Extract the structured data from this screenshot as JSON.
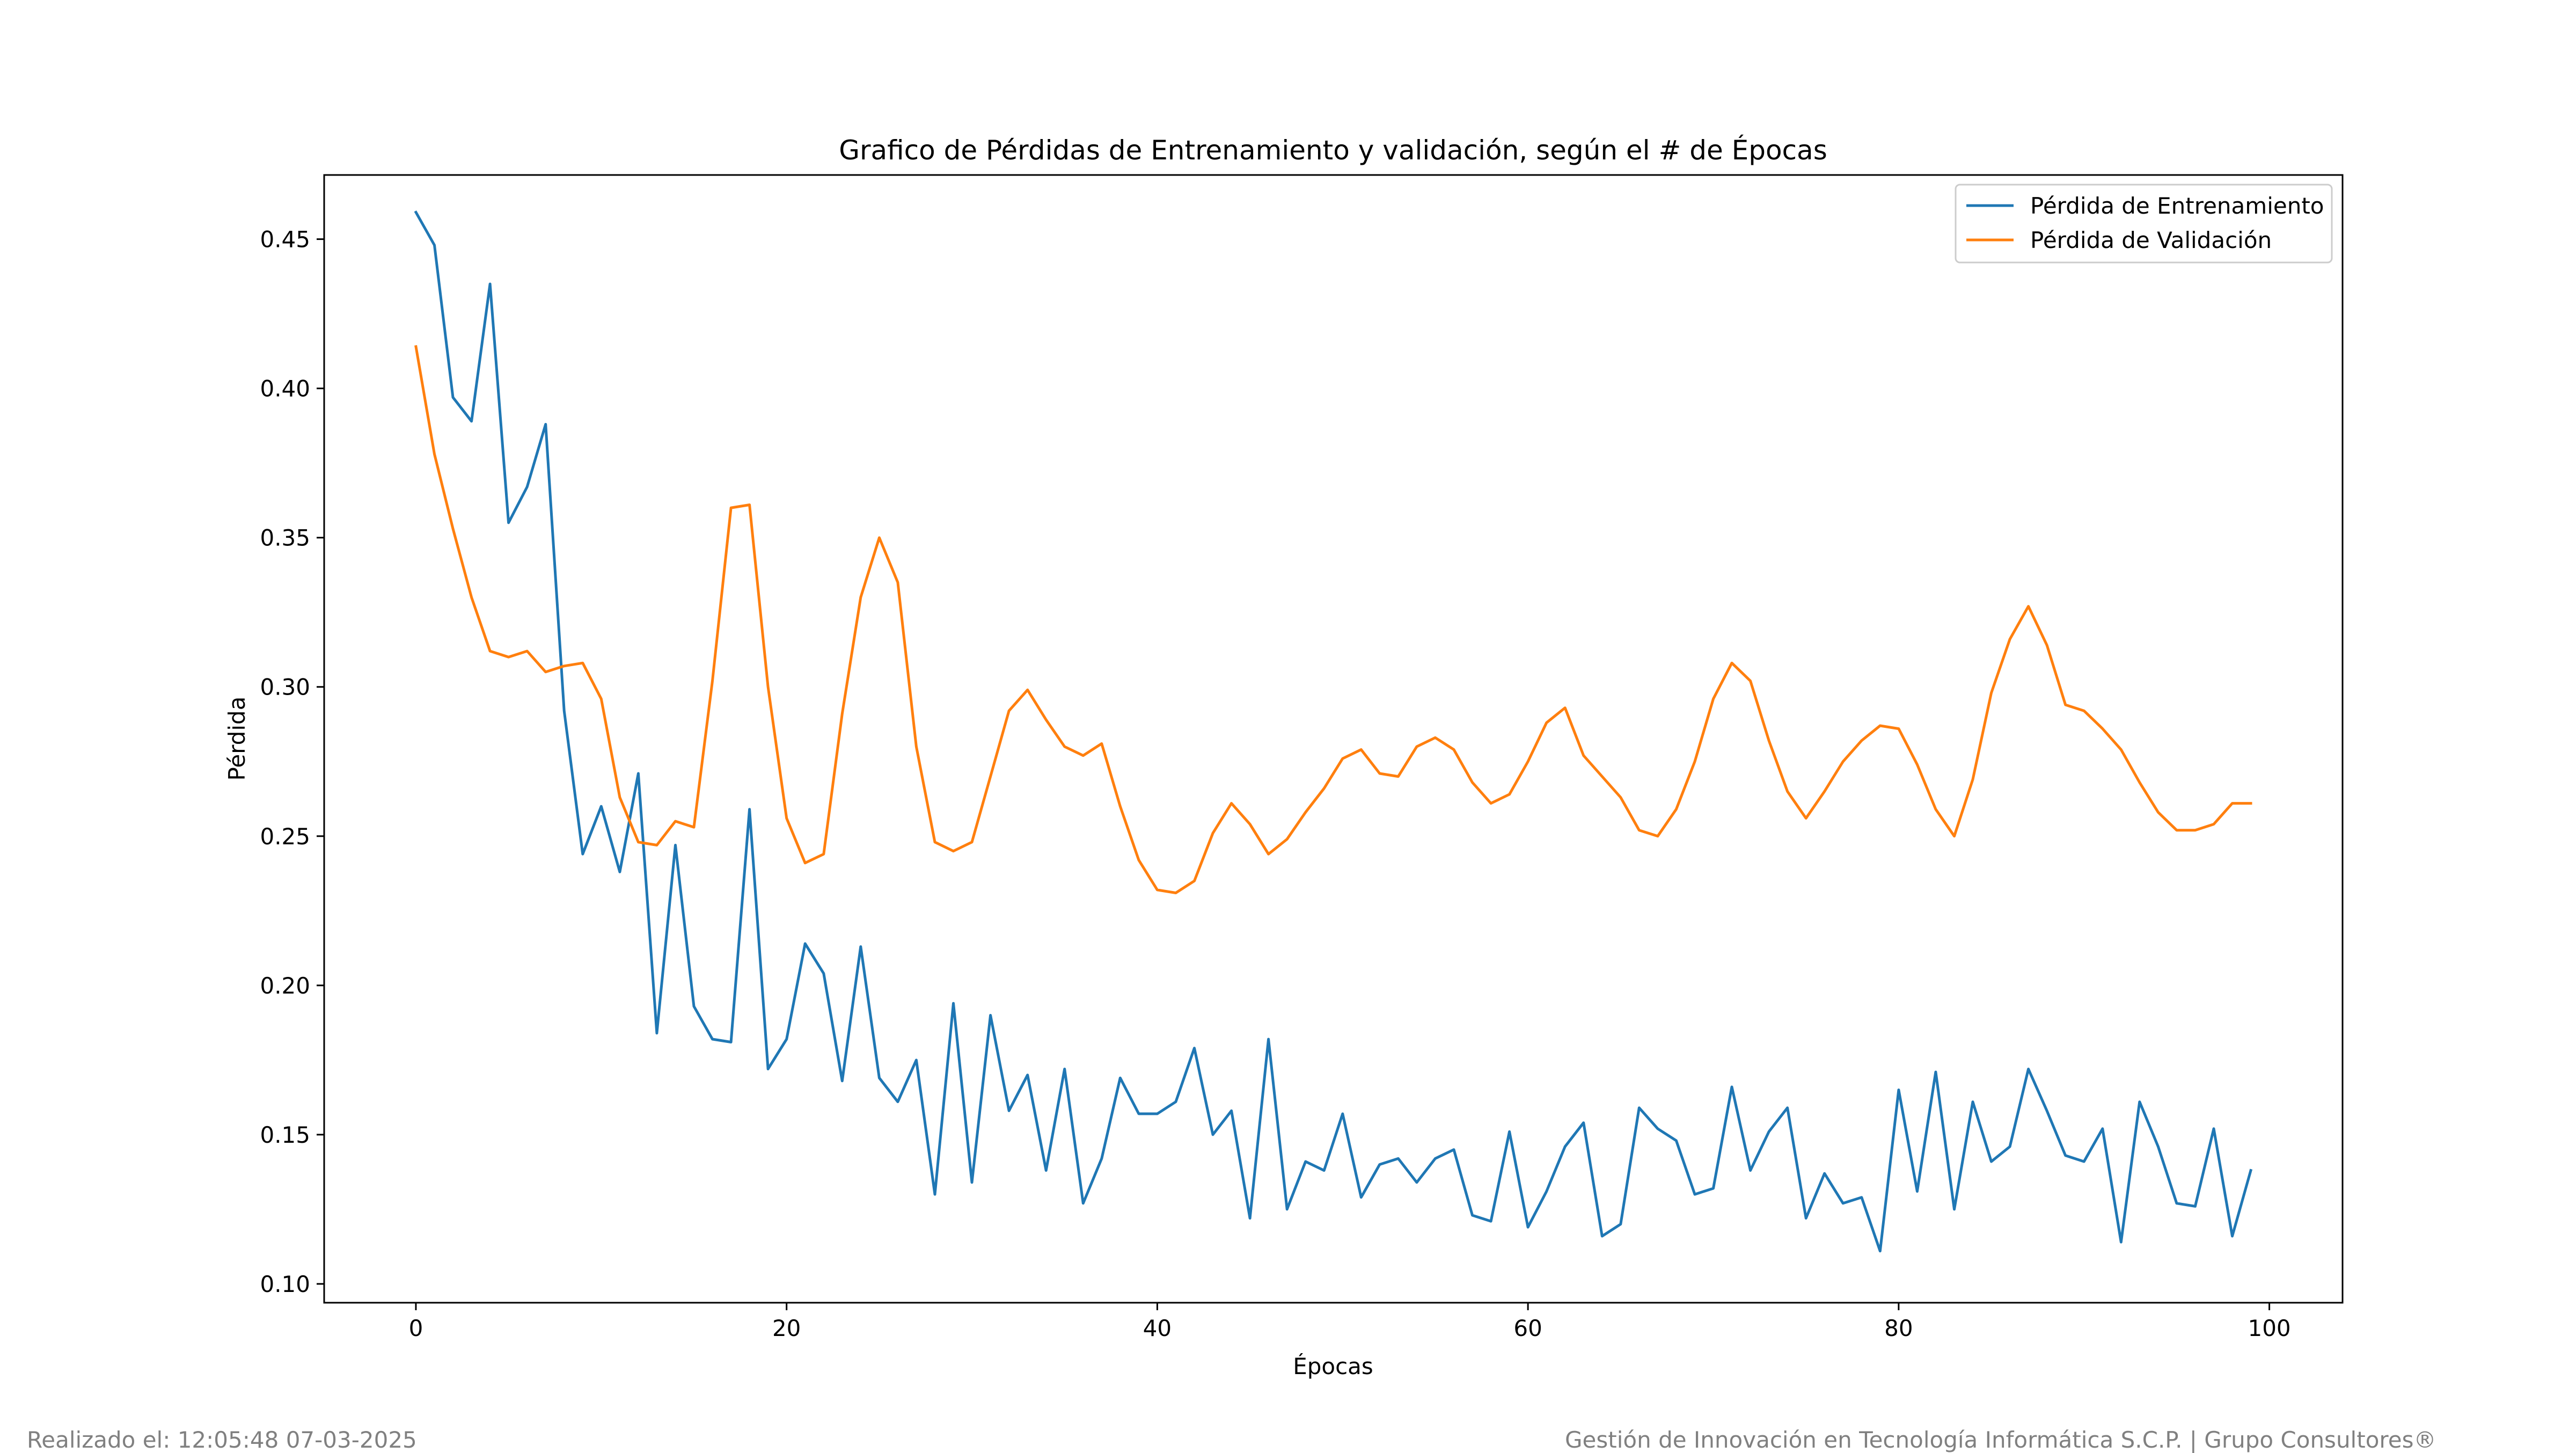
{
  "chart_data": {
    "type": "line",
    "title": "Grafico de Pérdidas de Entrenamiento y validación, según el # de Épocas",
    "xlabel": "Épocas",
    "ylabel": "Pérdida",
    "xlim": [
      -4.95,
      103.95
    ],
    "ylim": [
      0.0937,
      0.4715
    ],
    "xticks": [
      0,
      20,
      40,
      60,
      80,
      100
    ],
    "yticks": [
      0.1,
      0.15,
      0.2,
      0.25,
      0.3,
      0.35,
      0.4,
      0.45
    ],
    "ytick_labels": [
      "0.10",
      "0.15",
      "0.20",
      "0.25",
      "0.30",
      "0.35",
      "0.40",
      "0.45"
    ],
    "grid": false,
    "legend_position": "top-right",
    "series": [
      {
        "name": "Pérdida de Entrenamiento",
        "color": "#1f77b4",
        "values": [
          0.459,
          0.448,
          0.397,
          0.389,
          0.435,
          0.355,
          0.367,
          0.388,
          0.292,
          0.244,
          0.26,
          0.238,
          0.271,
          0.184,
          0.247,
          0.193,
          0.182,
          0.181,
          0.259,
          0.172,
          0.182,
          0.214,
          0.204,
          0.168,
          0.213,
          0.169,
          0.161,
          0.175,
          0.13,
          0.194,
          0.134,
          0.19,
          0.158,
          0.17,
          0.138,
          0.172,
          0.127,
          0.142,
          0.169,
          0.157,
          0.157,
          0.161,
          0.179,
          0.15,
          0.158,
          0.122,
          0.182,
          0.125,
          0.141,
          0.138,
          0.157,
          0.129,
          0.14,
          0.142,
          0.134,
          0.142,
          0.145,
          0.123,
          0.121,
          0.151,
          0.119,
          0.131,
          0.146,
          0.154,
          0.116,
          0.12,
          0.159,
          0.152,
          0.148,
          0.13,
          0.132,
          0.166,
          0.138,
          0.151,
          0.159,
          0.122,
          0.137,
          0.127,
          0.129,
          0.111,
          0.165,
          0.131,
          0.171,
          0.125,
          0.161,
          0.141,
          0.146,
          0.172,
          0.158,
          0.143,
          0.141,
          0.152,
          0.114,
          0.161,
          0.146,
          0.127,
          0.126,
          0.152,
          0.116,
          0.138
        ]
      },
      {
        "name": "Pérdida de Validación",
        "color": "#ff7f0e",
        "values": [
          0.414,
          0.378,
          0.353,
          0.33,
          0.312,
          0.31,
          0.312,
          0.305,
          0.307,
          0.308,
          0.296,
          0.263,
          0.248,
          0.247,
          0.255,
          0.253,
          0.302,
          0.36,
          0.361,
          0.3,
          0.256,
          0.241,
          0.244,
          0.291,
          0.33,
          0.35,
          0.335,
          0.28,
          0.248,
          0.245,
          0.248,
          0.27,
          0.292,
          0.299,
          0.289,
          0.28,
          0.277,
          0.281,
          0.26,
          0.242,
          0.232,
          0.231,
          0.235,
          0.251,
          0.261,
          0.254,
          0.244,
          0.249,
          0.258,
          0.266,
          0.276,
          0.279,
          0.271,
          0.27,
          0.28,
          0.283,
          0.279,
          0.268,
          0.261,
          0.264,
          0.275,
          0.288,
          0.293,
          0.277,
          0.27,
          0.263,
          0.252,
          0.25,
          0.259,
          0.275,
          0.296,
          0.308,
          0.302,
          0.282,
          0.265,
          0.256,
          0.265,
          0.275,
          0.282,
          0.287,
          0.286,
          0.274,
          0.259,
          0.25,
          0.269,
          0.298,
          0.316,
          0.327,
          0.314,
          0.294,
          0.292,
          0.286,
          0.279,
          0.268,
          0.258,
          0.252,
          0.252,
          0.254,
          0.261,
          0.261
        ]
      }
    ]
  },
  "footer": {
    "left": "Realizado el: 12:05:48 07-03-2025",
    "right": "Gestión de Innovación en Tecnología Informática S.C.P. | Grupo Consultores®"
  }
}
